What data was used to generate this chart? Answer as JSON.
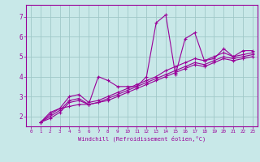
{
  "bg_color": "#c8e8e8",
  "grid_color": "#a0c8c8",
  "line_color": "#990099",
  "xlabel": "Windchill (Refroidissement éolien,°C)",
  "xlabel_color": "#990099",
  "tick_color": "#990099",
  "xlim": [
    -0.5,
    23.5
  ],
  "ylim": [
    1.5,
    7.6
  ],
  "xticks": [
    0,
    1,
    2,
    3,
    4,
    5,
    6,
    7,
    8,
    9,
    10,
    11,
    12,
    13,
    14,
    15,
    16,
    17,
    18,
    19,
    20,
    21,
    22,
    23
  ],
  "yticks": [
    2,
    3,
    4,
    5,
    6,
    7
  ],
  "series": [
    [
      1.7,
      2.2,
      2.4,
      2.5,
      2.6,
      2.6,
      4.0,
      3.8,
      3.5,
      3.5,
      3.5,
      4.0,
      6.7,
      7.1,
      4.1,
      5.9,
      6.2,
      4.8,
      4.9,
      5.4,
      5.0,
      5.3,
      5.3
    ],
    [
      1.7,
      2.1,
      2.4,
      3.0,
      3.1,
      2.7,
      2.8,
      3.0,
      3.2,
      3.4,
      3.6,
      3.8,
      4.0,
      4.3,
      4.5,
      4.7,
      4.9,
      4.8,
      5.0,
      5.2,
      5.0,
      5.1,
      5.2
    ],
    [
      1.7,
      2.0,
      2.3,
      2.8,
      2.9,
      2.6,
      2.7,
      2.9,
      3.1,
      3.3,
      3.5,
      3.7,
      3.9,
      4.1,
      4.3,
      4.5,
      4.7,
      4.6,
      4.8,
      5.0,
      4.9,
      5.0,
      5.1
    ],
    [
      1.7,
      1.9,
      2.2,
      2.7,
      2.8,
      2.6,
      2.7,
      2.8,
      3.0,
      3.2,
      3.4,
      3.6,
      3.8,
      4.0,
      4.2,
      4.4,
      4.6,
      4.5,
      4.7,
      4.9,
      4.8,
      4.9,
      5.0
    ]
  ]
}
